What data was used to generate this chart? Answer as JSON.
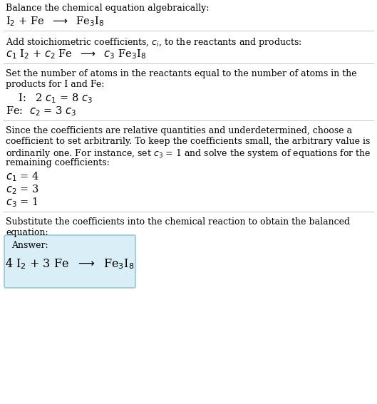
{
  "title": "Balance the chemical equation algebraically:",
  "line1": "I$_2$ + Fe  $\\longrightarrow$  Fe$_3$I$_8$",
  "section2_title": "Add stoichiometric coefficients, $c_i$, to the reactants and products:",
  "section2_line": "$c_1$ I$_2$ + $c_2$ Fe  $\\longrightarrow$  $c_3$ Fe$_3$I$_8$",
  "section3_title_l1": "Set the number of atoms in the reactants equal to the number of atoms in the",
  "section3_title_l2": "products for I and Fe:",
  "section3_I": "  I:   2 $c_1$ = 8 $c_3$",
  "section3_Fe": "Fe:  $c_2$ = 3 $c_3$",
  "section4_title_l1": "Since the coefficients are relative quantities and underdetermined, choose a",
  "section4_title_l2": "coefficient to set arbitrarily. To keep the coefficients small, the arbitrary value is",
  "section4_title_l3": "ordinarily one. For instance, set $c_3$ = 1 and solve the system of equations for the",
  "section4_title_l4": "remaining coefficients:",
  "section4_c1": "$c_1$ = 4",
  "section4_c2": "$c_2$ = 3",
  "section4_c3": "$c_3$ = 1",
  "section5_title_l1": "Substitute the coefficients into the chemical reaction to obtain the balanced",
  "section5_title_l2": "equation:",
  "answer_label": "Answer:",
  "answer_eq": "4 I$_2$ + 3 Fe  $\\longrightarrow$  Fe$_3$I$_8$",
  "bg_color": "#ffffff",
  "text_color": "#000000",
  "line_color": "#cccccc",
  "box_bg": "#daeef8",
  "box_border": "#9ac8d8"
}
